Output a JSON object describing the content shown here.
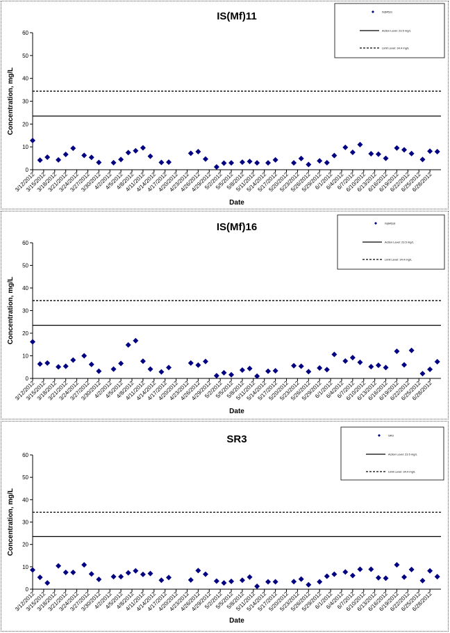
{
  "chart_data": [
    {
      "type": "scatter",
      "title": "IS(Mf)11",
      "xlabel": "Date",
      "ylabel": "Concentration, mg/L",
      "ylim": [
        0,
        60
      ],
      "yticks": [
        "0",
        "10",
        "20",
        "30",
        "40",
        "50",
        "60"
      ],
      "grid": false,
      "legend_position": "top-right",
      "xticks": [
        "3/12/2012",
        "3/15/2012",
        "3/18/2012",
        "3/21/2012",
        "3/24/2012",
        "3/27/2012",
        "3/30/2012",
        "4/2/2012",
        "4/5/2012",
        "4/8/2012",
        "4/11/2012",
        "4/14/2012",
        "4/17/2012",
        "4/20/2012",
        "4/23/2012",
        "4/26/2012",
        "4/29/2012",
        "5/2/2012",
        "5/5/2012",
        "5/8/2012",
        "5/11/2012",
        "5/14/2012",
        "5/17/2012",
        "5/20/2012",
        "5/23/2012",
        "5/26/2012",
        "5/29/2012",
        "6/1/2012",
        "6/4/2012",
        "6/7/2012",
        "6/10/2012",
        "6/13/2012",
        "6/16/2012",
        "6/19/2012",
        "6/22/2012",
        "6/25/2012",
        "6/28/2012"
      ],
      "series": [
        {
          "name": "IS(Mf)11",
          "color": "#000080",
          "points": [
            [
              "3/12/2012",
              12.8
            ],
            [
              "3/14/2012",
              4.2
            ],
            [
              "3/16/2012",
              5.5
            ],
            [
              "3/19/2012",
              4.3
            ],
            [
              "3/21/2012",
              6.7
            ],
            [
              "3/23/2012",
              9.4
            ],
            [
              "3/26/2012",
              6.3
            ],
            [
              "3/28/2012",
              5.4
            ],
            [
              "3/30/2012",
              3.2
            ],
            [
              "4/3/2012",
              3.1
            ],
            [
              "4/5/2012",
              4.5
            ],
            [
              "4/7/2012",
              7.5
            ],
            [
              "4/9/2012",
              8.3
            ],
            [
              "4/11/2012",
              9.6
            ],
            [
              "4/13/2012",
              5.9
            ],
            [
              "4/16/2012",
              3.2
            ],
            [
              "4/18/2012",
              3.3
            ],
            [
              "4/24/2012",
              7.2
            ],
            [
              "4/26/2012",
              7.9
            ],
            [
              "4/28/2012",
              4.7
            ],
            [
              "5/1/2012",
              1.2
            ],
            [
              "5/3/2012",
              2.9
            ],
            [
              "5/5/2012",
              3.0
            ],
            [
              "5/8/2012",
              3.3
            ],
            [
              "5/10/2012",
              3.6
            ],
            [
              "5/12/2012",
              3.0
            ],
            [
              "5/15/2012",
              3.0
            ],
            [
              "5/17/2012",
              4.3
            ],
            [
              "5/22/2012",
              3.0
            ],
            [
              "5/24/2012",
              4.9
            ],
            [
              "5/26/2012",
              2.3
            ],
            [
              "5/29/2012",
              3.9
            ],
            [
              "5/31/2012",
              3.1
            ],
            [
              "6/2/2012",
              6.2
            ],
            [
              "6/5/2012",
              9.8
            ],
            [
              "6/7/2012",
              7.6
            ],
            [
              "6/9/2012",
              11.0
            ],
            [
              "6/12/2012",
              7.0
            ],
            [
              "6/14/2012",
              6.8
            ],
            [
              "6/16/2012",
              5.0
            ],
            [
              "6/19/2012",
              9.5
            ],
            [
              "6/21/2012",
              8.7
            ],
            [
              "6/23/2012",
              7.1
            ],
            [
              "6/26/2012",
              4.5
            ],
            [
              "6/28/2012",
              8.1
            ],
            [
              "6/30/2012",
              7.9
            ]
          ]
        },
        {
          "name": "Action Level: 23.5 mg/L",
          "style": "solid",
          "y": 23.5
        },
        {
          "name": "Limit Level: 34.4 mg/L",
          "style": "dashed",
          "y": 34.4
        }
      ]
    },
    {
      "type": "scatter",
      "title": "IS(Mf)16",
      "xlabel": "Date",
      "ylabel": "Concentration, mg/L",
      "ylim": [
        0,
        60
      ],
      "yticks": [
        "0",
        "10",
        "20",
        "30",
        "40",
        "50",
        "60"
      ],
      "grid": false,
      "legend_position": "top-right",
      "xticks": [
        "3/12/2012",
        "3/15/2012",
        "3/18/2012",
        "3/21/2012",
        "3/24/2012",
        "3/27/2012",
        "3/30/2012",
        "4/2/2012",
        "4/5/2012",
        "4/8/2012",
        "4/11/2012",
        "4/14/2012",
        "4/17/2012",
        "4/20/2012",
        "4/23/2012",
        "4/26/2012",
        "4/29/2012",
        "5/2/2012",
        "5/5/2012",
        "5/8/2012",
        "5/11/2012",
        "5/14/2012",
        "5/17/2012",
        "5/20/2012",
        "5/23/2012",
        "5/26/2012",
        "5/29/2012",
        "6/1/2012",
        "6/4/2012",
        "6/7/2012",
        "6/10/2012",
        "6/13/2012",
        "6/16/2012",
        "6/19/2012",
        "6/22/2012",
        "6/25/2012",
        "6/28/2012"
      ],
      "series": [
        {
          "name": "IS(Mf)16",
          "color": "#000080",
          "points": [
            [
              "3/12/2012",
              16.2
            ],
            [
              "3/14/2012",
              6.4
            ],
            [
              "3/16/2012",
              6.8
            ],
            [
              "3/19/2012",
              5.1
            ],
            [
              "3/21/2012",
              5.4
            ],
            [
              "3/23/2012",
              8.1
            ],
            [
              "3/26/2012",
              10.0
            ],
            [
              "3/28/2012",
              6.2
            ],
            [
              "3/30/2012",
              3.2
            ],
            [
              "4/3/2012",
              4.1
            ],
            [
              "4/5/2012",
              6.6
            ],
            [
              "4/7/2012",
              14.8
            ],
            [
              "4/9/2012",
              16.7
            ],
            [
              "4/11/2012",
              7.6
            ],
            [
              "4/13/2012",
              4.1
            ],
            [
              "4/16/2012",
              2.9
            ],
            [
              "4/18/2012",
              4.8
            ],
            [
              "4/24/2012",
              6.8
            ],
            [
              "4/26/2012",
              5.9
            ],
            [
              "4/28/2012",
              7.5
            ],
            [
              "5/1/2012",
              1.2
            ],
            [
              "5/3/2012",
              2.5
            ],
            [
              "5/5/2012",
              1.6
            ],
            [
              "5/8/2012",
              3.7
            ],
            [
              "5/10/2012",
              4.4
            ],
            [
              "5/12/2012",
              1.0
            ],
            [
              "5/15/2012",
              3.2
            ],
            [
              "5/17/2012",
              3.4
            ],
            [
              "5/22/2012",
              5.6
            ],
            [
              "5/24/2012",
              5.4
            ],
            [
              "5/26/2012",
              3.0
            ],
            [
              "5/29/2012",
              4.6
            ],
            [
              "5/31/2012",
              3.9
            ],
            [
              "6/2/2012",
              10.6
            ],
            [
              "6/5/2012",
              7.7
            ],
            [
              "6/7/2012",
              9.2
            ],
            [
              "6/9/2012",
              7.1
            ],
            [
              "6/12/2012",
              5.2
            ],
            [
              "6/14/2012",
              5.8
            ],
            [
              "6/16/2012",
              4.8
            ],
            [
              "6/19/2012",
              12.0
            ],
            [
              "6/21/2012",
              6.0
            ],
            [
              "6/23/2012",
              12.4
            ],
            [
              "6/26/2012",
              2.1
            ],
            [
              "6/28/2012",
              4.0
            ],
            [
              "6/30/2012",
              7.4
            ]
          ]
        },
        {
          "name": "Action Level: 23.5 mg/L",
          "style": "solid",
          "y": 23.5
        },
        {
          "name": "Limit Level: 34.4 mg/L",
          "style": "dashed",
          "y": 34.4
        }
      ]
    },
    {
      "type": "scatter",
      "title": "SR3",
      "xlabel": "Date",
      "ylabel": "Concentration, mg/L",
      "ylim": [
        0,
        60
      ],
      "yticks": [
        "0",
        "10",
        "20",
        "30",
        "40",
        "50",
        "60"
      ],
      "grid": false,
      "legend_position": "top-right",
      "xticks": [
        "3/12/2012",
        "3/15/2012",
        "3/18/2012",
        "3/21/2012",
        "3/24/2012",
        "3/27/2012",
        "3/30/2012",
        "4/2/2012",
        "4/5/2012",
        "4/8/2012",
        "4/11/2012",
        "4/14/2012",
        "4/17/2012",
        "4/20/2012",
        "4/23/2012",
        "4/26/2012",
        "4/29/2012",
        "5/2/2012",
        "5/5/2012",
        "5/8/2012",
        "5/11/2012",
        "5/14/2012",
        "5/17/2012",
        "5/20/2012",
        "5/23/2012",
        "5/26/2012",
        "5/29/2012",
        "6/1/2012",
        "6/4/2012",
        "6/7/2012",
        "6/10/2012",
        "6/13/2012",
        "6/16/2012",
        "6/19/2012",
        "6/22/2012",
        "6/25/2012",
        "6/28/2012"
      ],
      "series": [
        {
          "name": "SR3",
          "color": "#000080",
          "points": [
            [
              "3/12/2012",
              8.6
            ],
            [
              "3/14/2012",
              5.3
            ],
            [
              "3/16/2012",
              2.8
            ],
            [
              "3/19/2012",
              10.4
            ],
            [
              "3/21/2012",
              7.5
            ],
            [
              "3/23/2012",
              7.5
            ],
            [
              "3/26/2012",
              10.9
            ],
            [
              "3/28/2012",
              6.8
            ],
            [
              "3/30/2012",
              4.4
            ],
            [
              "4/3/2012",
              5.6
            ],
            [
              "4/5/2012",
              5.6
            ],
            [
              "4/7/2012",
              7.3
            ],
            [
              "4/9/2012",
              8.2
            ],
            [
              "4/11/2012",
              6.6
            ],
            [
              "4/13/2012",
              7.0
            ],
            [
              "4/16/2012",
              4.0
            ],
            [
              "4/18/2012",
              5.2
            ],
            [
              "4/24/2012",
              4.1
            ],
            [
              "4/26/2012",
              8.3
            ],
            [
              "4/28/2012",
              6.7
            ],
            [
              "5/1/2012",
              3.6
            ],
            [
              "5/3/2012",
              2.8
            ],
            [
              "5/5/2012",
              3.5
            ],
            [
              "5/8/2012",
              4.0
            ],
            [
              "5/10/2012",
              5.4
            ],
            [
              "5/12/2012",
              1.3
            ],
            [
              "5/15/2012",
              3.3
            ],
            [
              "5/17/2012",
              3.3
            ],
            [
              "5/22/2012",
              3.4
            ],
            [
              "5/24/2012",
              4.5
            ],
            [
              "5/26/2012",
              2.0
            ],
            [
              "5/29/2012",
              3.3
            ],
            [
              "5/31/2012",
              5.8
            ],
            [
              "6/2/2012",
              6.7
            ],
            [
              "6/5/2012",
              7.7
            ],
            [
              "6/7/2012",
              6.1
            ],
            [
              "6/9/2012",
              8.9
            ],
            [
              "6/12/2012",
              8.9
            ],
            [
              "6/14/2012",
              5.1
            ],
            [
              "6/16/2012",
              4.9
            ],
            [
              "6/19/2012",
              10.9
            ],
            [
              "6/21/2012",
              5.4
            ],
            [
              "6/23/2012",
              8.8
            ],
            [
              "6/26/2012",
              3.8
            ],
            [
              "6/28/2012",
              8.2
            ],
            [
              "6/30/2012",
              5.6
            ]
          ]
        },
        {
          "name": "Action Level: 23.5 mg/L",
          "style": "solid",
          "y": 23.5
        },
        {
          "name": "Limit Level: 34.4 mg/L",
          "style": "dashed",
          "y": 34.4
        }
      ]
    }
  ]
}
